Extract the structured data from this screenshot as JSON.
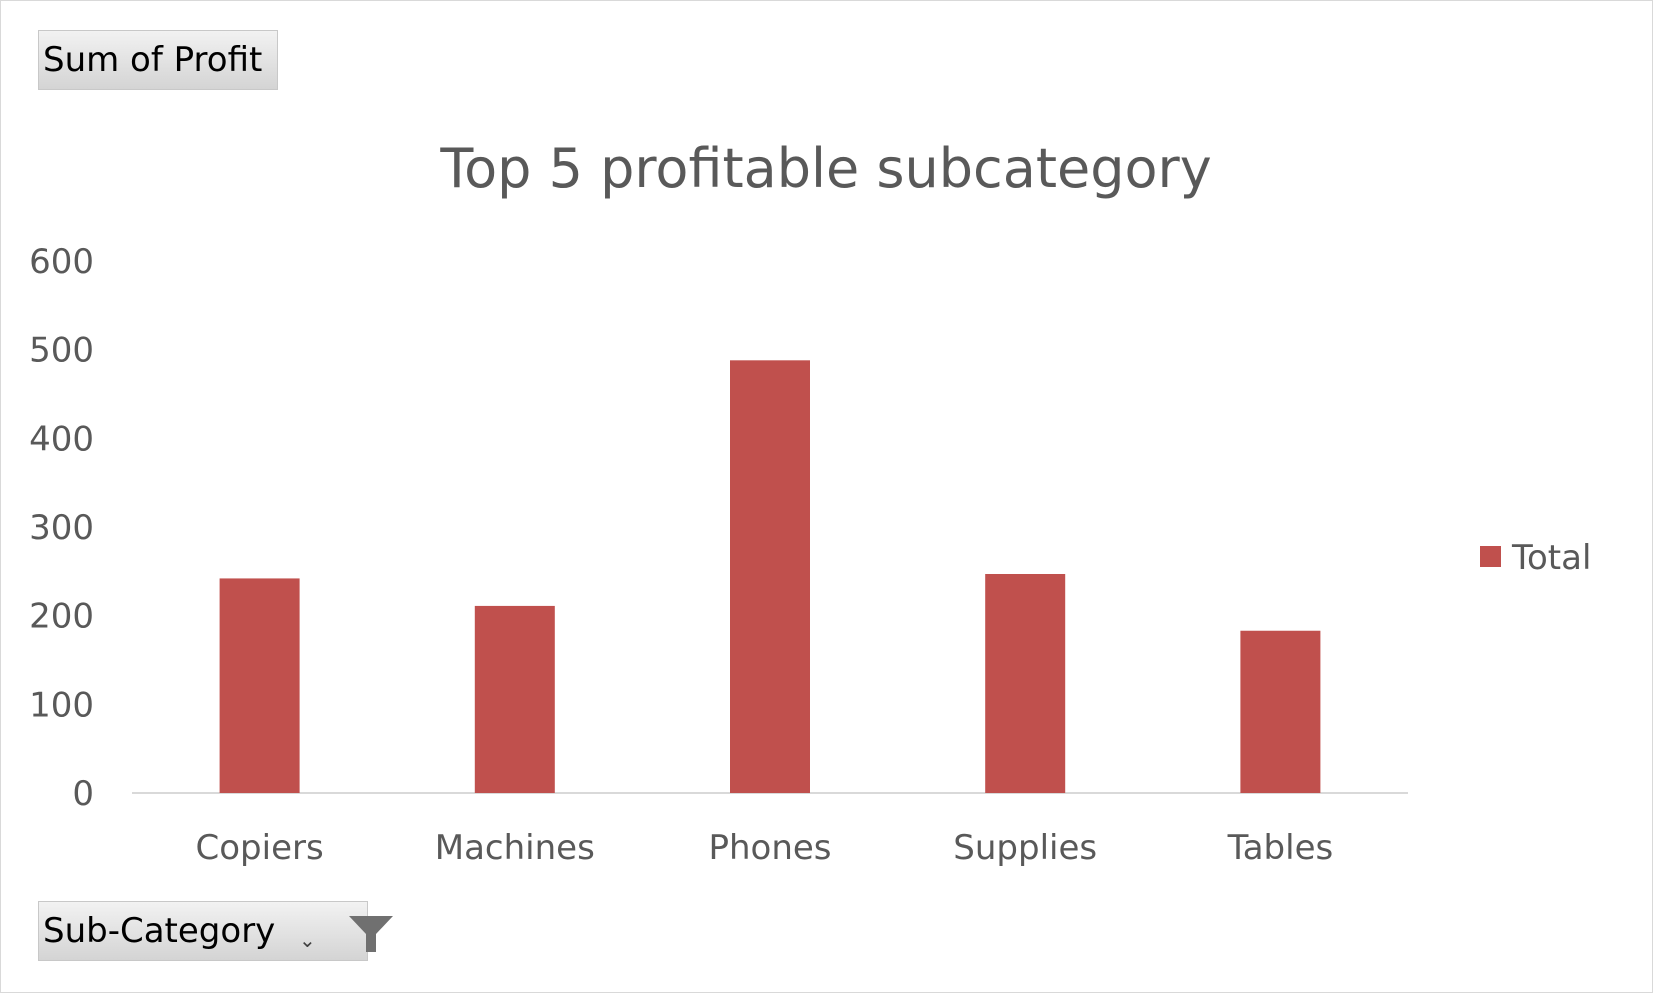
{
  "field_buttons": {
    "values_field": "Sum of Profit",
    "axis_field": "Sub-Category",
    "filter_icon": "funnel-filter-icon",
    "dropdown_icon": "dropdown-arrow-icon"
  },
  "colors": {
    "bar": "#c0504d",
    "axis_text": "#595959",
    "axis_line": "#d9d9d9"
  },
  "chart_data": {
    "type": "bar",
    "title": "Top 5 profitable subcategory",
    "categories": [
      "Copiers",
      "Machines",
      "Phones",
      "Supplies",
      "Tables"
    ],
    "series": [
      {
        "name": "Total",
        "values": [
          242,
          211,
          488,
          247,
          183
        ]
      }
    ],
    "ylim": [
      0,
      600
    ],
    "yticks": [
      "0",
      "100",
      "200",
      "300",
      "400",
      "500",
      "600"
    ],
    "grid": false,
    "legend": "right"
  }
}
